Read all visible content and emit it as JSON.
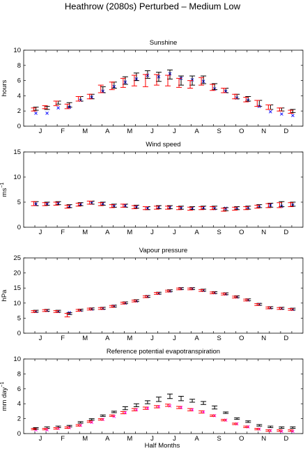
{
  "figure_title": "Heathrow (2080s) Perturbed – Medium Low",
  "x_label": "Half Months",
  "month_labels": [
    "J",
    "F",
    "M",
    "A",
    "M",
    "J",
    "J",
    "A",
    "S",
    "O",
    "N",
    "D"
  ],
  "colors": {
    "observed_marker": "#0000ff",
    "generated_marker": "#000000",
    "perturbed_bar": "#ff0000",
    "generated_bar": "#000000",
    "ref_marker": "#ff00ff"
  },
  "chart_data": [
    {
      "type": "errorbar",
      "title": "Sunshine",
      "ylabel": "hours",
      "ylim": [
        0,
        10
      ],
      "yticks": [
        0,
        2,
        4,
        6,
        8,
        10
      ],
      "x": [
        1,
        2,
        3,
        4,
        5,
        6,
        7,
        8,
        9,
        10,
        11,
        12,
        13,
        14,
        15,
        16,
        17,
        18,
        19,
        20,
        21,
        22,
        23,
        24
      ],
      "series": [
        {
          "marker": "cross",
          "values": [
            1.7,
            1.7,
            2.4,
            2.5,
            3.4,
            3.8,
            4.6,
            5.2,
            5.8,
            6.2,
            6.7,
            6.5,
            6.9,
            6.3,
            6.1,
            5.9,
            4.9,
            4.6,
            3.7,
            3.4,
            2.6,
            1.9,
            1.6,
            1.4
          ]
        },
        {
          "marker": "errorbar-black",
          "mid": [
            2.3,
            2.4,
            3.1,
            2.8,
            3.6,
            3.9,
            4.8,
            5.4,
            6.0,
            6.5,
            6.8,
            6.5,
            6.8,
            6.0,
            6.0,
            6.1,
            5.2,
            4.7,
            3.9,
            3.6,
            3.0,
            2.5,
            2.2,
            2.0
          ],
          "half": [
            0.2,
            0.2,
            0.2,
            0.3,
            0.3,
            0.3,
            0.4,
            0.4,
            0.5,
            0.5,
            0.5,
            0.6,
            0.6,
            0.6,
            0.6,
            0.5,
            0.4,
            0.3,
            0.3,
            0.3,
            0.4,
            0.3,
            0.2,
            0.2
          ]
        },
        {
          "marker": "errorbar-red",
          "mid": [
            2.2,
            2.5,
            3.0,
            2.6,
            3.6,
            3.9,
            4.9,
            5.3,
            5.7,
            6.0,
            6.0,
            6.1,
            6.0,
            5.7,
            5.5,
            5.9,
            5.1,
            4.7,
            3.9,
            3.5,
            3.0,
            2.5,
            2.2,
            1.9
          ],
          "half": [
            0.2,
            0.2,
            0.3,
            0.3,
            0.3,
            0.3,
            0.5,
            0.5,
            0.6,
            0.7,
            0.8,
            0.7,
            0.7,
            0.6,
            0.5,
            0.5,
            0.4,
            0.3,
            0.3,
            0.3,
            0.4,
            0.3,
            0.2,
            0.2
          ]
        }
      ]
    },
    {
      "type": "errorbar",
      "title": "Wind speed",
      "ylabel": "ms",
      "ylabel_exp": "−1",
      "ylim": [
        0,
        15
      ],
      "yticks": [
        0,
        5,
        10,
        15
      ],
      "x": [
        1,
        2,
        3,
        4,
        5,
        6,
        7,
        8,
        9,
        10,
        11,
        12,
        13,
        14,
        15,
        16,
        17,
        18,
        19,
        20,
        21,
        22,
        23,
        24
      ],
      "series": [
        {
          "marker": "cross",
          "values": [
            4.6,
            4.6,
            4.7,
            4.2,
            4.6,
            4.8,
            4.7,
            4.2,
            4.3,
            4.0,
            3.8,
            4.0,
            3.9,
            3.8,
            3.8,
            3.9,
            3.7,
            3.8,
            3.9,
            4.0,
            4.3,
            4.4,
            4.2,
            4.4
          ]
        },
        {
          "marker": "errorbar-black",
          "mid": [
            4.7,
            4.7,
            4.8,
            4.2,
            4.6,
            4.9,
            4.7,
            4.3,
            4.3,
            4.1,
            3.8,
            4.0,
            4.0,
            3.9,
            3.8,
            3.9,
            3.9,
            3.6,
            3.8,
            3.9,
            4.2,
            4.4,
            4.6,
            4.6
          ],
          "half": [
            0.4,
            0.3,
            0.3,
            0.3,
            0.3,
            0.3,
            0.3,
            0.3,
            0.3,
            0.3,
            0.3,
            0.3,
            0.3,
            0.3,
            0.3,
            0.3,
            0.3,
            0.3,
            0.3,
            0.3,
            0.3,
            0.4,
            0.5,
            0.4
          ]
        },
        {
          "marker": "errorbar-red",
          "mid": [
            4.7,
            4.6,
            4.7,
            4.1,
            4.5,
            4.9,
            4.6,
            4.2,
            4.3,
            4.0,
            3.8,
            3.9,
            3.9,
            3.8,
            3.7,
            3.8,
            3.8,
            3.5,
            3.7,
            3.8,
            4.1,
            4.3,
            4.4,
            4.5
          ],
          "half": [
            0.4,
            0.3,
            0.3,
            0.3,
            0.3,
            0.3,
            0.3,
            0.3,
            0.3,
            0.3,
            0.3,
            0.3,
            0.3,
            0.3,
            0.3,
            0.3,
            0.3,
            0.3,
            0.3,
            0.3,
            0.3,
            0.4,
            0.5,
            0.4
          ]
        }
      ]
    },
    {
      "type": "errorbar",
      "title": "Vapour pressure",
      "ylabel": "hPa",
      "ylim": [
        0,
        25
      ],
      "yticks": [
        0,
        5,
        10,
        15,
        20,
        25
      ],
      "x": [
        1,
        2,
        3,
        4,
        5,
        6,
        7,
        8,
        9,
        10,
        11,
        12,
        13,
        14,
        15,
        16,
        17,
        18,
        19,
        20,
        21,
        22,
        23,
        24
      ],
      "series": [
        {
          "marker": "cross",
          "values": [
            7.2,
            7.5,
            7.2,
            6.8,
            7.6,
            8.0,
            8.2,
            9.0,
            10.0,
            10.7,
            12.2,
            13.2,
            14.0,
            14.8,
            14.8,
            14.2,
            13.4,
            13.0,
            12.0,
            11.0,
            9.6,
            8.4,
            8.2,
            7.9
          ]
        },
        {
          "marker": "errorbar-black",
          "mid": [
            7.3,
            7.6,
            7.3,
            6.5,
            7.7,
            8.1,
            8.3,
            9.0,
            10.1,
            10.8,
            12.2,
            13.3,
            14.1,
            14.8,
            14.8,
            14.3,
            13.5,
            13.1,
            12.1,
            11.1,
            9.6,
            8.5,
            8.3,
            8.0
          ],
          "half": [
            0.3,
            0.3,
            0.3,
            0.3,
            0.3,
            0.3,
            0.3,
            0.3,
            0.3,
            0.3,
            0.3,
            0.3,
            0.3,
            0.3,
            0.3,
            0.3,
            0.3,
            0.3,
            0.3,
            0.3,
            0.3,
            0.3,
            0.3,
            0.3
          ]
        },
        {
          "marker": "errorbar-red",
          "mid": [
            7.2,
            7.5,
            7.2,
            6.0,
            7.6,
            8.0,
            8.2,
            8.9,
            10.0,
            10.7,
            12.1,
            13.2,
            14.0,
            14.7,
            14.7,
            14.2,
            13.4,
            13.0,
            12.0,
            11.0,
            9.5,
            8.4,
            8.2,
            7.9
          ],
          "half": [
            0.3,
            0.3,
            0.3,
            0.6,
            0.3,
            0.3,
            0.3,
            0.3,
            0.3,
            0.3,
            0.3,
            0.3,
            0.3,
            0.3,
            0.3,
            0.3,
            0.3,
            0.3,
            0.3,
            0.3,
            0.3,
            0.3,
            0.3,
            0.3
          ]
        }
      ]
    },
    {
      "type": "errorbar",
      "title": "Reference potential evapotranspiration",
      "ylabel": "mm day",
      "ylabel_exp": "−1",
      "ylim": [
        0,
        10
      ],
      "yticks": [
        0,
        2,
        4,
        6,
        8,
        10
      ],
      "x": [
        1,
        2,
        3,
        4,
        5,
        6,
        7,
        8,
        9,
        10,
        11,
        12,
        13,
        14,
        15,
        16,
        17,
        18,
        19,
        20,
        21,
        22,
        23,
        24
      ],
      "series": [
        {
          "marker": "cross",
          "values": [
            0.5,
            0.5,
            0.7,
            0.8,
            1.1,
            1.5,
            1.9,
            2.3,
            2.8,
            3.2,
            3.4,
            3.6,
            3.7,
            3.5,
            3.2,
            2.9,
            2.4,
            1.8,
            1.3,
            0.9,
            0.6,
            0.4,
            0.3,
            0.3
          ]
        },
        {
          "marker": "errorbar-black",
          "mid": [
            0.7,
            0.8,
            0.9,
            1.0,
            1.5,
            1.9,
            2.4,
            2.9,
            3.4,
            3.8,
            4.2,
            4.6,
            5.0,
            4.7,
            4.4,
            4.1,
            3.5,
            2.8,
            2.0,
            1.6,
            1.1,
            0.9,
            0.8,
            0.8
          ],
          "half": [
            0.1,
            0.1,
            0.1,
            0.1,
            0.1,
            0.1,
            0.1,
            0.1,
            0.2,
            0.2,
            0.2,
            0.3,
            0.3,
            0.3,
            0.2,
            0.2,
            0.2,
            0.1,
            0.1,
            0.1,
            0.1,
            0.1,
            0.1,
            0.1
          ]
        },
        {
          "marker": "errorbar-red",
          "mid": [
            0.6,
            0.6,
            0.7,
            0.8,
            1.1,
            1.6,
            1.9,
            2.4,
            2.8,
            3.2,
            3.4,
            3.6,
            3.8,
            3.5,
            3.2,
            2.9,
            2.4,
            1.8,
            1.3,
            0.9,
            0.6,
            0.4,
            0.4,
            0.4
          ],
          "half": [
            0.1,
            0.1,
            0.1,
            0.1,
            0.1,
            0.1,
            0.1,
            0.1,
            0.15,
            0.15,
            0.15,
            0.15,
            0.15,
            0.15,
            0.15,
            0.15,
            0.1,
            0.1,
            0.1,
            0.1,
            0.1,
            0.1,
            0.1,
            0.1
          ]
        }
      ]
    }
  ]
}
